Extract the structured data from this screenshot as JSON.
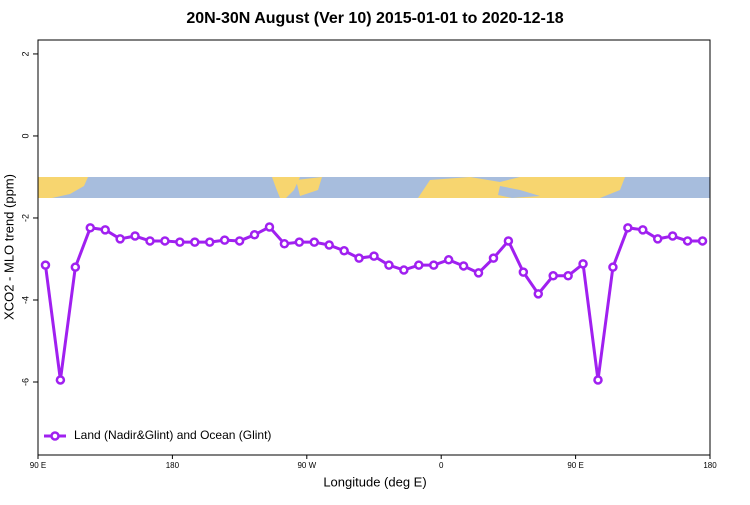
{
  "chart_data": {
    "type": "line",
    "title": "20N-30N August (Ver 10)   2015-01-01 to 2020-12-18",
    "xlabel": "Longitude (deg E)",
    "ylabel": "XCO2 - MLO trend (ppm)",
    "x": [
      95,
      105,
      115,
      125,
      135,
      145,
      155,
      165,
      175,
      185,
      195,
      205,
      215,
      225,
      235,
      245,
      255,
      265,
      275,
      285,
      295,
      305,
      315,
      325,
      335,
      345,
      355,
      365,
      375,
      385,
      395,
      405,
      415,
      425,
      435,
      445,
      455,
      465,
      475,
      485,
      495,
      505,
      515,
      525,
      535
    ],
    "series": [
      {
        "name": "Land (Nadir&Glint) and Ocean (Glint)",
        "color": "#a020f0",
        "values": [
          -3.15,
          -5.95,
          -3.2,
          -2.24,
          -2.29,
          -2.51,
          -2.44,
          -2.56,
          -2.56,
          -2.59,
          -2.59,
          -2.59,
          -2.54,
          -2.56,
          -2.41,
          -2.22,
          -2.63,
          -2.59,
          -2.59,
          -2.66,
          -2.8,
          -2.98,
          -2.93,
          -3.15,
          -3.27,
          -3.15,
          -3.15,
          -3.02,
          -3.17,
          -3.34,
          -2.98,
          -2.56,
          -3.32,
          -3.85,
          -3.41,
          -3.41,
          -3.12,
          -5.95,
          -3.2,
          -2.24,
          -2.29,
          -2.51,
          -2.44,
          -2.56,
          -2.56
        ]
      }
    ],
    "xlim": [
      90,
      540
    ],
    "xticks": [
      {
        "value": 90,
        "label": "90 E"
      },
      180,
      {
        "value": 270,
        "label": "90 W"
      },
      {
        "value": 360,
        "label": "0"
      },
      {
        "value": 450,
        "label": "90 E"
      },
      {
        "value": 540,
        "label": "180"
      }
    ],
    "ylim": [
      -7.78,
      2.34
    ],
    "yticks": [
      2,
      0,
      -2,
      -4,
      -6
    ],
    "legend": "bottom-left"
  }
}
